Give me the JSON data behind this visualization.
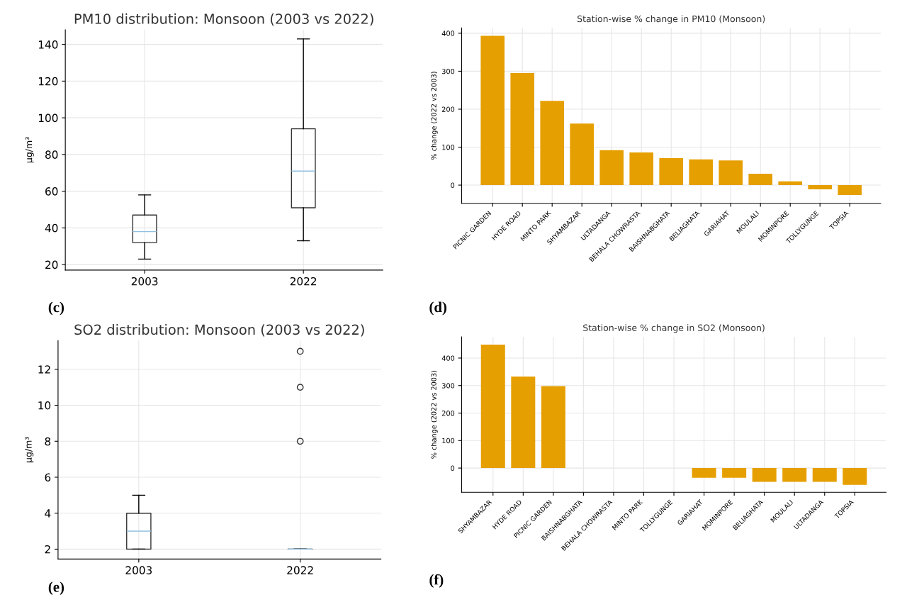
{
  "chart_data": [
    {
      "type": "box",
      "title": "PM10 distribution: Monsoon (2003 vs 2022)",
      "ylabel": "µg/m³",
      "categories": [
        "2003",
        "2022"
      ],
      "boxes": [
        {
          "low": 23,
          "q1": 32,
          "median": 38,
          "q3": 47,
          "high": 58
        },
        {
          "low": 33,
          "q1": 51,
          "median": 71,
          "q3": 94,
          "high": 143
        }
      ],
      "ylim": [
        17,
        148
      ],
      "yticks": [
        20,
        40,
        60,
        80,
        100,
        120,
        140
      ],
      "grid": true,
      "annotations": [
        "(c)"
      ]
    },
    {
      "type": "bar",
      "title": "Station-wise % change in PM10 (Monsoon)",
      "ylabel": "% change (2022 vs 2003)",
      "categories": [
        "PICNIC GARDEN",
        "HYDE ROAD",
        "MINTO PARK",
        "SHYAMBAZAR",
        "ULTADANGA",
        "BEHALA CHOWRASTA",
        "BAISHNABGHATA",
        "BELIAGHATA",
        "GARIAHAT",
        "MOULALI",
        "MOMINPORE",
        "TOLLYGUNGE",
        "TOPSIA"
      ],
      "values": [
        393,
        295,
        222,
        162,
        92,
        86,
        71,
        68,
        65,
        30,
        10,
        -11,
        -26
      ],
      "color": "#e69f00",
      "ylim": [
        -48,
        414
      ],
      "yticks": [
        0,
        100,
        200,
        300,
        400
      ],
      "grid": true,
      "annotations": [
        "(d)"
      ]
    },
    {
      "type": "box",
      "title": "SO2 distribution: Monsoon (2003 vs 2022)",
      "ylabel": "µg/m³",
      "categories": [
        "2003",
        "2022"
      ],
      "boxes": [
        {
          "low": 2,
          "q1": 2,
          "median": 3,
          "q3": 4,
          "high": 5
        },
        {
          "low": 2,
          "q1": 2,
          "median": 2,
          "q3": 2,
          "high": 2,
          "outliers": [
            8,
            11,
            13
          ]
        }
      ],
      "ylim": [
        1.45,
        13.6
      ],
      "yticks": [
        2,
        4,
        6,
        8,
        10,
        12
      ],
      "grid": true,
      "annotations": [
        "(e)"
      ]
    },
    {
      "type": "bar",
      "title": "Station-wise % change in SO2 (Monsoon)",
      "ylabel": "% change (2022 vs 2003)",
      "categories": [
        "SHYAMBAZAR",
        "HYDE ROAD",
        "PICNIC GARDEN",
        "BAISHNABGHATA",
        "BEHALA CHOWRASTA",
        "MINTO PARK",
        "TOLLYGUNGE",
        "GARIAHAT",
        "MOMINPORE",
        "BELIAGHATA",
        "MOULALI",
        "ULTADANGA",
        "TOPSIA"
      ],
      "values": [
        449,
        333,
        298,
        0,
        0,
        0,
        0,
        -35,
        -35,
        -50,
        -50,
        -50,
        -61
      ],
      "color": "#e69f00",
      "ylim": [
        -88,
        477
      ],
      "yticks": [
        0,
        100,
        200,
        300,
        400
      ],
      "grid": true,
      "annotations": [
        "(f)"
      ]
    }
  ]
}
